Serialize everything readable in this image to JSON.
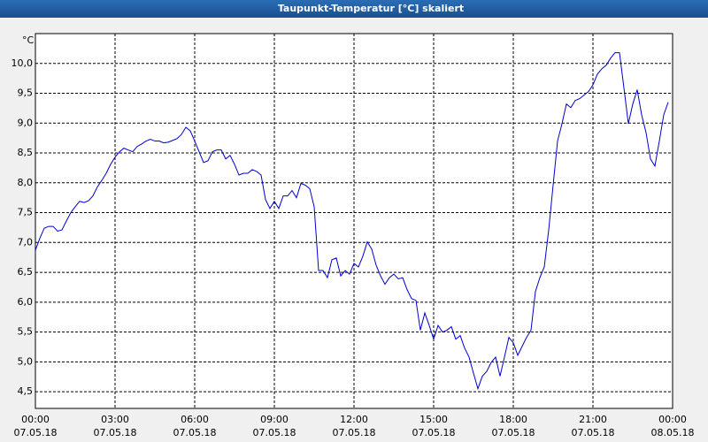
{
  "chart_data": {
    "type": "line",
    "title": "Taupunkt-Temperatur [°C] skaliert",
    "y_label": "°C",
    "xlim": [
      0,
      1440
    ],
    "ylim": [
      4.22,
      10.5
    ],
    "grid": true,
    "xticks": [
      {
        "value": 0,
        "label": "00:00"
      },
      {
        "value": 180,
        "label": "03:00"
      },
      {
        "value": 360,
        "label": "06:00"
      },
      {
        "value": 540,
        "label": "09:00"
      },
      {
        "value": 720,
        "label": "12:00"
      },
      {
        "value": 900,
        "label": "15:00"
      },
      {
        "value": 1080,
        "label": "18:00"
      },
      {
        "value": 1260,
        "label": "21:00"
      },
      {
        "value": 1440,
        "label": "00:00"
      }
    ],
    "xtick_dates": [
      "07.05.18",
      "07.05.18",
      "07.05.18",
      "07.05.18",
      "07.05.18",
      "07.05.18",
      "07.05.18",
      "07.05.18",
      "08.05.18"
    ],
    "yticks": [
      {
        "value": 4.5,
        "label": "4,5"
      },
      {
        "value": 5,
        "label": "5,0"
      },
      {
        "value": 5.5,
        "label": "5,5"
      },
      {
        "value": 6,
        "label": "6,0"
      },
      {
        "value": 6.5,
        "label": "6,5"
      },
      {
        "value": 7,
        "label": "7,0"
      },
      {
        "value": 7.5,
        "label": "7,5"
      },
      {
        "value": 8,
        "label": "8,0"
      },
      {
        "value": 8.5,
        "label": "8,5"
      },
      {
        "value": 9,
        "label": "9,0"
      },
      {
        "value": 9.5,
        "label": "9,5"
      },
      {
        "value": 10,
        "label": "10,0"
      }
    ],
    "x": [
      0,
      10,
      20,
      30,
      40,
      50,
      60,
      70,
      80,
      90,
      100,
      110,
      120,
      130,
      140,
      150,
      160,
      170,
      180,
      190,
      200,
      210,
      220,
      230,
      240,
      250,
      260,
      270,
      280,
      290,
      300,
      310,
      320,
      330,
      340,
      350,
      360,
      370,
      380,
      390,
      400,
      410,
      420,
      430,
      440,
      450,
      460,
      470,
      480,
      490,
      500,
      510,
      520,
      530,
      540,
      550,
      560,
      570,
      580,
      590,
      600,
      610,
      620,
      630,
      640,
      650,
      660,
      670,
      680,
      690,
      700,
      710,
      720,
      730,
      740,
      750,
      760,
      770,
      780,
      790,
      800,
      810,
      820,
      830,
      840,
      850,
      860,
      870,
      880,
      890,
      900,
      910,
      920,
      930,
      940,
      950,
      960,
      970,
      980,
      990,
      1000,
      1010,
      1020,
      1030,
      1040,
      1050,
      1060,
      1070,
      1080,
      1090,
      1100,
      1110,
      1120,
      1130,
      1140,
      1150,
      1160,
      1170,
      1180,
      1190,
      1200,
      1210,
      1220,
      1230,
      1240,
      1250,
      1260,
      1270,
      1280,
      1290,
      1300,
      1310,
      1320,
      1330,
      1340,
      1350,
      1360,
      1370,
      1380,
      1390,
      1400,
      1410,
      1420,
      1430
    ],
    "series": [
      {
        "color": "#0000cc",
        "values": [
          6.87,
          7.07,
          7.24,
          7.27,
          7.27,
          7.19,
          7.21,
          7.36,
          7.5,
          7.6,
          7.69,
          7.67,
          7.7,
          7.78,
          7.93,
          8.04,
          8.16,
          8.31,
          8.43,
          8.52,
          8.58,
          8.55,
          8.52,
          8.61,
          8.65,
          8.7,
          8.73,
          8.7,
          8.7,
          8.67,
          8.68,
          8.71,
          8.74,
          8.81,
          8.93,
          8.87,
          8.7,
          8.52,
          8.34,
          8.37,
          8.52,
          8.55,
          8.55,
          8.4,
          8.46,
          8.31,
          8.13,
          8.16,
          8.16,
          8.22,
          8.19,
          8.13,
          7.72,
          7.57,
          7.69,
          7.57,
          7.78,
          7.78,
          7.87,
          7.75,
          7.99,
          7.96,
          7.9,
          7.6,
          6.53,
          6.53,
          6.41,
          6.71,
          6.74,
          6.44,
          6.53,
          6.47,
          6.65,
          6.59,
          6.77,
          7.01,
          6.89,
          6.62,
          6.44,
          6.3,
          6.41,
          6.47,
          6.39,
          6.41,
          6.21,
          6.06,
          6.03,
          5.53,
          5.82,
          5.61,
          5.38,
          5.61,
          5.5,
          5.53,
          5.59,
          5.38,
          5.44,
          5.23,
          5.08,
          4.81,
          4.55,
          4.76,
          4.84,
          4.99,
          5.08,
          4.76,
          5.08,
          5.41,
          5.32,
          5.11,
          5.26,
          5.41,
          5.53,
          6.18,
          6.41,
          6.59,
          7.21,
          7.96,
          8.7,
          8.99,
          9.32,
          9.26,
          9.38,
          9.41,
          9.47,
          9.53,
          9.64,
          9.82,
          9.91,
          9.97,
          10.09,
          10.18,
          10.18,
          9.59,
          8.99,
          9.32,
          9.56,
          9.14,
          8.84,
          8.4,
          8.28,
          8.7,
          9.14,
          9.35
        ]
      }
    ]
  }
}
